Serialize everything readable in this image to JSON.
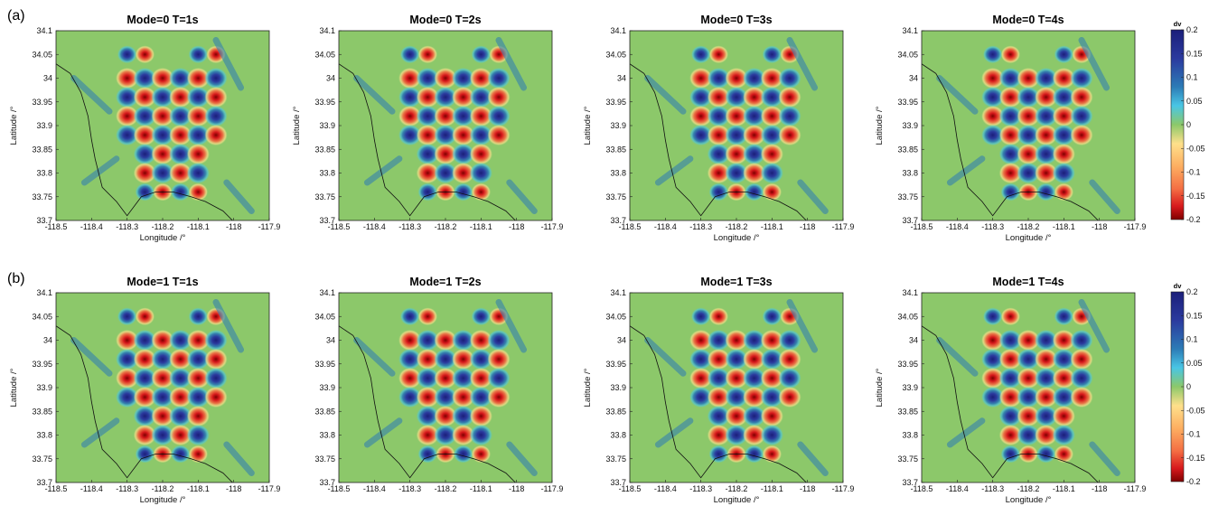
{
  "row_labels": [
    "(a)",
    "(b)"
  ],
  "colorbar": {
    "label": "dv",
    "range": [
      -0.2,
      0.2
    ],
    "ticks": [
      "0.2",
      "0.15",
      "0.1",
      "0.05",
      "0",
      "-0.05",
      "-0.1",
      "-0.15",
      "-0.2"
    ],
    "colors": [
      "#7f0000",
      "#d7191c",
      "#f46d43",
      "#fdae61",
      "#fee08b",
      "#8cc86a",
      "#49c6e5",
      "#2c7bb6",
      "#2b3a9e",
      "#1b1f7a"
    ]
  },
  "chart_data": [
    {
      "type": "heatmap",
      "title": "Mode=0 T=1s",
      "xlabel": "Longitude /°",
      "ylabel": "Latitude /°",
      "xlim": [
        -118.5,
        -117.9
      ],
      "ylim": [
        33.7,
        34.1
      ],
      "x_ticks": [
        "-118.5",
        "-118.4",
        "-118.3",
        "-118.2",
        "-118.1",
        "-118",
        "-117.9"
      ],
      "y_ticks": [
        "34.1",
        "34.05",
        "34",
        "33.95",
        "33.9",
        "33.85",
        "33.8",
        "33.75",
        "33.7"
      ]
    },
    {
      "type": "heatmap",
      "title": "Mode=0 T=2s",
      "xlabel": "",
      "ylabel": "Latitude /°",
      "xlim": [
        -118.5,
        -117.9
      ],
      "ylim": [
        33.7,
        34.1
      ],
      "x_ticks": [
        "-118.5",
        "-118.4",
        "-118.3",
        "-118.2",
        "-118.1",
        "-118",
        "-117.9"
      ],
      "y_ticks": [
        "34.1",
        "34.05",
        "34",
        "33.95",
        "33.9",
        "33.85",
        "33.8",
        "33.75",
        "33.7"
      ]
    },
    {
      "type": "heatmap",
      "title": "Mode=0 T=3s",
      "xlabel": "Longitude /°",
      "ylabel": "Latitude /°",
      "xlim": [
        -118.5,
        -117.9
      ],
      "ylim": [
        33.7,
        34.1
      ],
      "x_ticks": [
        "-118.5",
        "-118.4",
        "-118.3",
        "-118.2",
        "-118.1",
        "-118",
        "-117.9"
      ],
      "y_ticks": [
        "34.1",
        "34.05",
        "34",
        "33.95",
        "33.9",
        "33.85",
        "33.8",
        "33.75",
        "33.7"
      ]
    },
    {
      "type": "heatmap",
      "title": "Mode=0 T=4s",
      "xlabel": "Longitude /°",
      "ylabel": "Latitude /°",
      "xlim": [
        -118.5,
        -117.9
      ],
      "ylim": [
        33.7,
        34.1
      ],
      "x_ticks": [
        "-118.5",
        "-118.4",
        "-118.3",
        "-118.2",
        "-118.1",
        "-118",
        "-117.9"
      ],
      "y_ticks": [
        "34.1",
        "34.05",
        "34",
        "33.95",
        "33.9",
        "33.85",
        "33.8",
        "33.75",
        "33.7"
      ]
    },
    {
      "type": "heatmap",
      "title": "Mode=1 T=1s",
      "xlabel": "Longitude /°",
      "ylabel": "Latitude /°",
      "xlim": [
        -118.5,
        -117.9
      ],
      "ylim": [
        33.7,
        34.1
      ],
      "x_ticks": [
        "-118.5",
        "-118.4",
        "-118.3",
        "-118.2",
        "-118.1",
        "-118",
        "-117.9"
      ],
      "y_ticks": [
        "34.1",
        "34.05",
        "34",
        "33.95",
        "33.9",
        "33.85",
        "33.8",
        "33.75",
        "33.7"
      ]
    },
    {
      "type": "heatmap",
      "title": "Mode=1 T=2s",
      "xlabel": "",
      "ylabel": "",
      "xlim": [
        -118.5,
        -117.9
      ],
      "ylim": [
        33.7,
        34.1
      ],
      "x_ticks": [
        "-118.5",
        "-118.4",
        "-118.3",
        "-118.2",
        "-118.1",
        "-118",
        "-117.9"
      ],
      "y_ticks": [
        "34.1",
        "34.05",
        "34",
        "33.95",
        "33.9",
        "33.85",
        "33.8",
        "33.75",
        "33.7"
      ]
    },
    {
      "type": "heatmap",
      "title": "Mode=1 T=3s",
      "xlabel": "Longitude /°",
      "ylabel": "Latitude /°",
      "xlim": [
        -118.5,
        -117.9
      ],
      "ylim": [
        33.7,
        34.1
      ],
      "x_ticks": [
        "-118.5",
        "-118.4",
        "-118.3",
        "-118.2",
        "-118.1",
        "-118",
        "-117.9"
      ],
      "y_ticks": [
        "34.1",
        "34.05",
        "34",
        "33.95",
        "33.9",
        "33.85",
        "33.8",
        "33.75",
        "33.7"
      ]
    },
    {
      "type": "heatmap",
      "title": "Mode=1 T=4s",
      "xlabel": "Longitude /°",
      "ylabel": "Latitude /°",
      "xlim": [
        -118.5,
        -117.9
      ],
      "ylim": [
        33.7,
        34.1
      ],
      "x_ticks": [
        "-118.5",
        "-118.4",
        "-118.3",
        "-118.2",
        "-118.1",
        "-118",
        "-117.9"
      ],
      "y_ticks": [
        "34.1",
        "34.05",
        "34",
        "33.95",
        "33.9",
        "33.85",
        "33.8",
        "33.75",
        "33.7"
      ]
    }
  ]
}
